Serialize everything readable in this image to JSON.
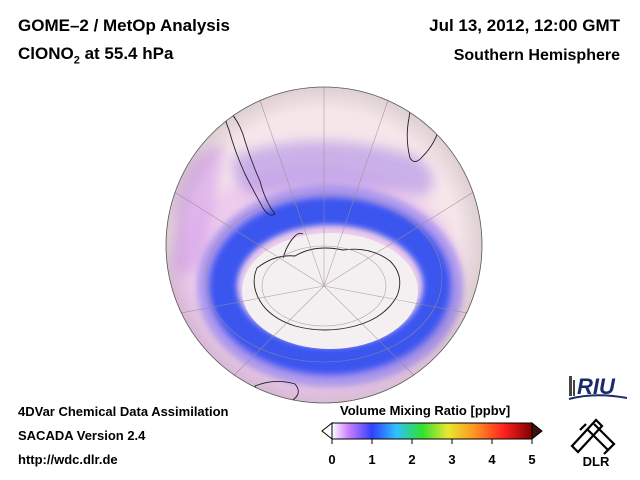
{
  "header": {
    "title_line1": "GOME–2 / MetOp Analysis",
    "species_main": "ClONO",
    "species_sub": "2",
    "species_rest": " at 55.4 hPa",
    "date": "Jul 13, 2012, 12:00 GMT",
    "hemisphere": "Southern Hemisphere"
  },
  "footer": {
    "line1": "4DVar Chemical Data Assimilation",
    "line2": "SACADA Version 2.4",
    "line3": "http://wdc.dlr.de"
  },
  "colorbar": {
    "title": "Volume Mixing Ratio [ppbv]",
    "ticks": [
      "0",
      "1",
      "2",
      "3",
      "4",
      "5"
    ],
    "colors": [
      "#ffffff",
      "#c060ff",
      "#3040ff",
      "#30c0ff",
      "#30e030",
      "#e8e830",
      "#ff9020",
      "#ff2020",
      "#800000"
    ]
  },
  "logos": {
    "riu": "RIU",
    "dlr": "DLR"
  },
  "map": {
    "background_color": "#f6e6ea",
    "vortex_color": "#3050f0",
    "outer_color": "#e6b6ee",
    "continent_outline": "#222222"
  }
}
